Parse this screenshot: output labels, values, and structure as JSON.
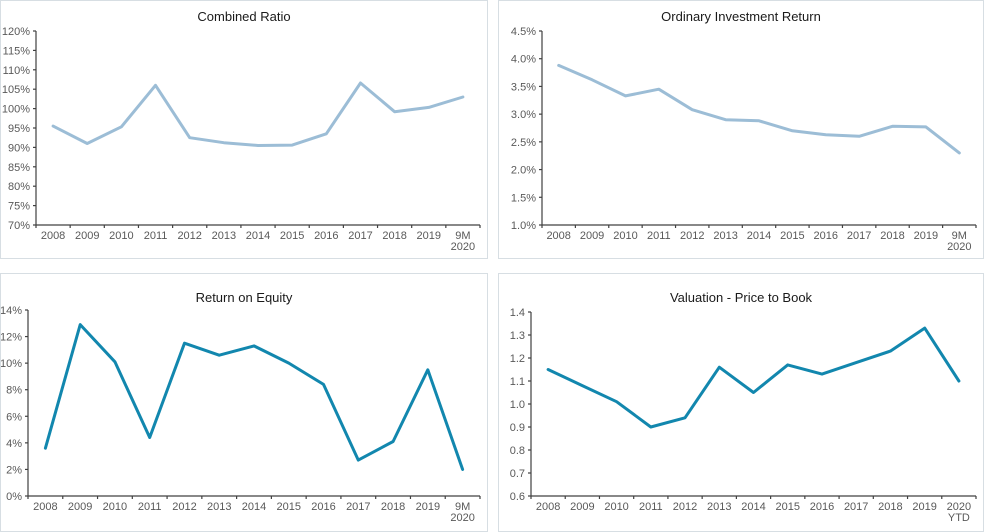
{
  "colors": {
    "axis": "#404040",
    "tick_label": "#595959",
    "title": "#1a1a1a",
    "panel_border": "#d7dee3",
    "background": "#ffffff",
    "line_light_blue": "#9CBDD6",
    "line_teal": "#1287AE"
  },
  "chart_data": [
    {
      "type": "line",
      "title": "Combined Ratio",
      "categories": [
        "2008",
        "2009",
        "2010",
        "2011",
        "2012",
        "2013",
        "2014",
        "2015",
        "2016",
        "2017",
        "2018",
        "2019",
        "9M\n2020"
      ],
      "values": [
        95.5,
        91,
        95.3,
        106,
        92.5,
        91.2,
        90.5,
        90.6,
        93.5,
        106.6,
        99.2,
        100.3,
        103
      ],
      "ylim": [
        70,
        120
      ],
      "ytick_step": 5,
      "ytick_labels": [
        "70%",
        "75%",
        "80%",
        "85%",
        "90%",
        "95%",
        "100%",
        "105%",
        "110%",
        "115%",
        "120%"
      ],
      "y_suffix": "%",
      "line_color": "#9CBDD6",
      "grid": false,
      "legend": "none"
    },
    {
      "type": "line",
      "title": "Ordinary Investment Return",
      "categories": [
        "2008",
        "2009",
        "2010",
        "2011",
        "2012",
        "2013",
        "2014",
        "2015",
        "2016",
        "2017",
        "2018",
        "2019",
        "9M\n2020"
      ],
      "values": [
        3.88,
        3.62,
        3.33,
        3.45,
        3.08,
        2.9,
        2.88,
        2.7,
        2.63,
        2.6,
        2.78,
        2.77,
        2.3
      ],
      "ylim": [
        1.0,
        4.5
      ],
      "ytick_step": 0.5,
      "ytick_labels": [
        "1.0%",
        "1.5%",
        "2.0%",
        "2.5%",
        "3.0%",
        "3.5%",
        "4.0%",
        "4.5%"
      ],
      "y_suffix": "%",
      "line_color": "#9CBDD6",
      "grid": false,
      "legend": "none"
    },
    {
      "type": "line",
      "title": "Return on Equity",
      "categories": [
        "2008",
        "2009",
        "2010",
        "2011",
        "2012",
        "2013",
        "2014",
        "2015",
        "2016",
        "2017",
        "2018",
        "2019",
        "9M\n2020"
      ],
      "values": [
        3.6,
        12.9,
        10.1,
        4.4,
        11.5,
        10.6,
        11.3,
        10.0,
        8.4,
        2.7,
        4.1,
        9.5,
        2.0
      ],
      "ylim": [
        0,
        14
      ],
      "ytick_step": 2,
      "ytick_labels": [
        "0%",
        "2%",
        "4%",
        "6%",
        "8%",
        "10%",
        "12%",
        "14%"
      ],
      "y_suffix": "%",
      "line_color": "#1287AE",
      "grid": false,
      "legend": "none"
    },
    {
      "type": "line",
      "title": "Valuation - Price to Book",
      "categories": [
        "2008",
        "2009",
        "2010",
        "2011",
        "2012",
        "2013",
        "2014",
        "2015",
        "2016",
        "2017",
        "2018",
        "2019",
        "2020\nYTD"
      ],
      "values": [
        1.15,
        1.08,
        1.01,
        0.9,
        0.94,
        1.16,
        1.05,
        1.17,
        1.13,
        1.18,
        1.23,
        1.33,
        1.1
      ],
      "ylim": [
        0.6,
        1.4
      ],
      "ytick_step": 0.1,
      "ytick_labels": [
        "0.6",
        "0.7",
        "0.8",
        "0.9",
        "1.0",
        "1.1",
        "1.2",
        "1.3",
        "1.4"
      ],
      "y_suffix": "",
      "line_color": "#1287AE",
      "grid": false,
      "legend": "none"
    }
  ]
}
